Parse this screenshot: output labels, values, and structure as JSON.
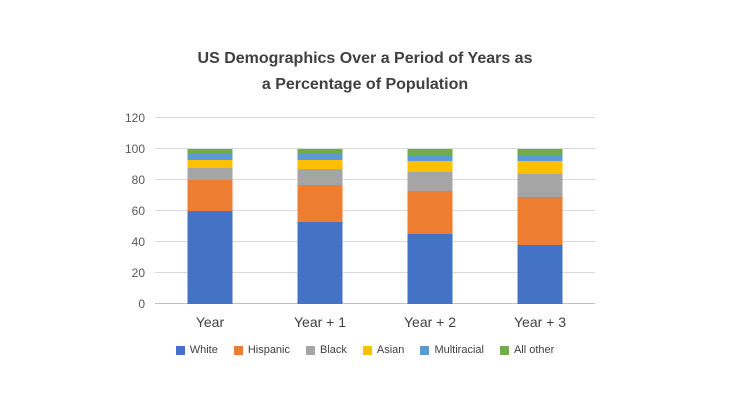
{
  "chart": {
    "title_line1": "US Demographics Over a Period of Years as",
    "title_line2": "a Percentage of Population"
  },
  "chart_data": {
    "type": "bar",
    "stacked": true,
    "title": "US Demographics Over a Period of Years as a Percentage of Population",
    "categories": [
      "Year",
      "Year + 1",
      "Year + 2",
      "Year + 3"
    ],
    "series": [
      {
        "name": "White",
        "color": "#4472C4",
        "values": [
          60,
          53,
          45,
          38
        ]
      },
      {
        "name": "Hispanic",
        "color": "#ED7D31",
        "values": [
          20,
          24,
          28,
          31
        ]
      },
      {
        "name": "Black",
        "color": "#A5A5A5",
        "values": [
          8,
          10,
          12,
          15
        ]
      },
      {
        "name": "Asian",
        "color": "#FFC000",
        "values": [
          5,
          6,
          7,
          8
        ]
      },
      {
        "name": "Multiracial",
        "color": "#5B9BD5",
        "values": [
          4,
          4,
          4,
          4
        ]
      },
      {
        "name": "All other",
        "color": "#70AD47",
        "values": [
          3,
          3,
          4,
          4
        ]
      }
    ],
    "ylim": [
      0,
      120
    ],
    "y_ticks": [
      0,
      20,
      40,
      60,
      80,
      100,
      120
    ],
    "grid": "horizontal",
    "legend_position": "bottom",
    "xlabel": "",
    "ylabel": ""
  }
}
